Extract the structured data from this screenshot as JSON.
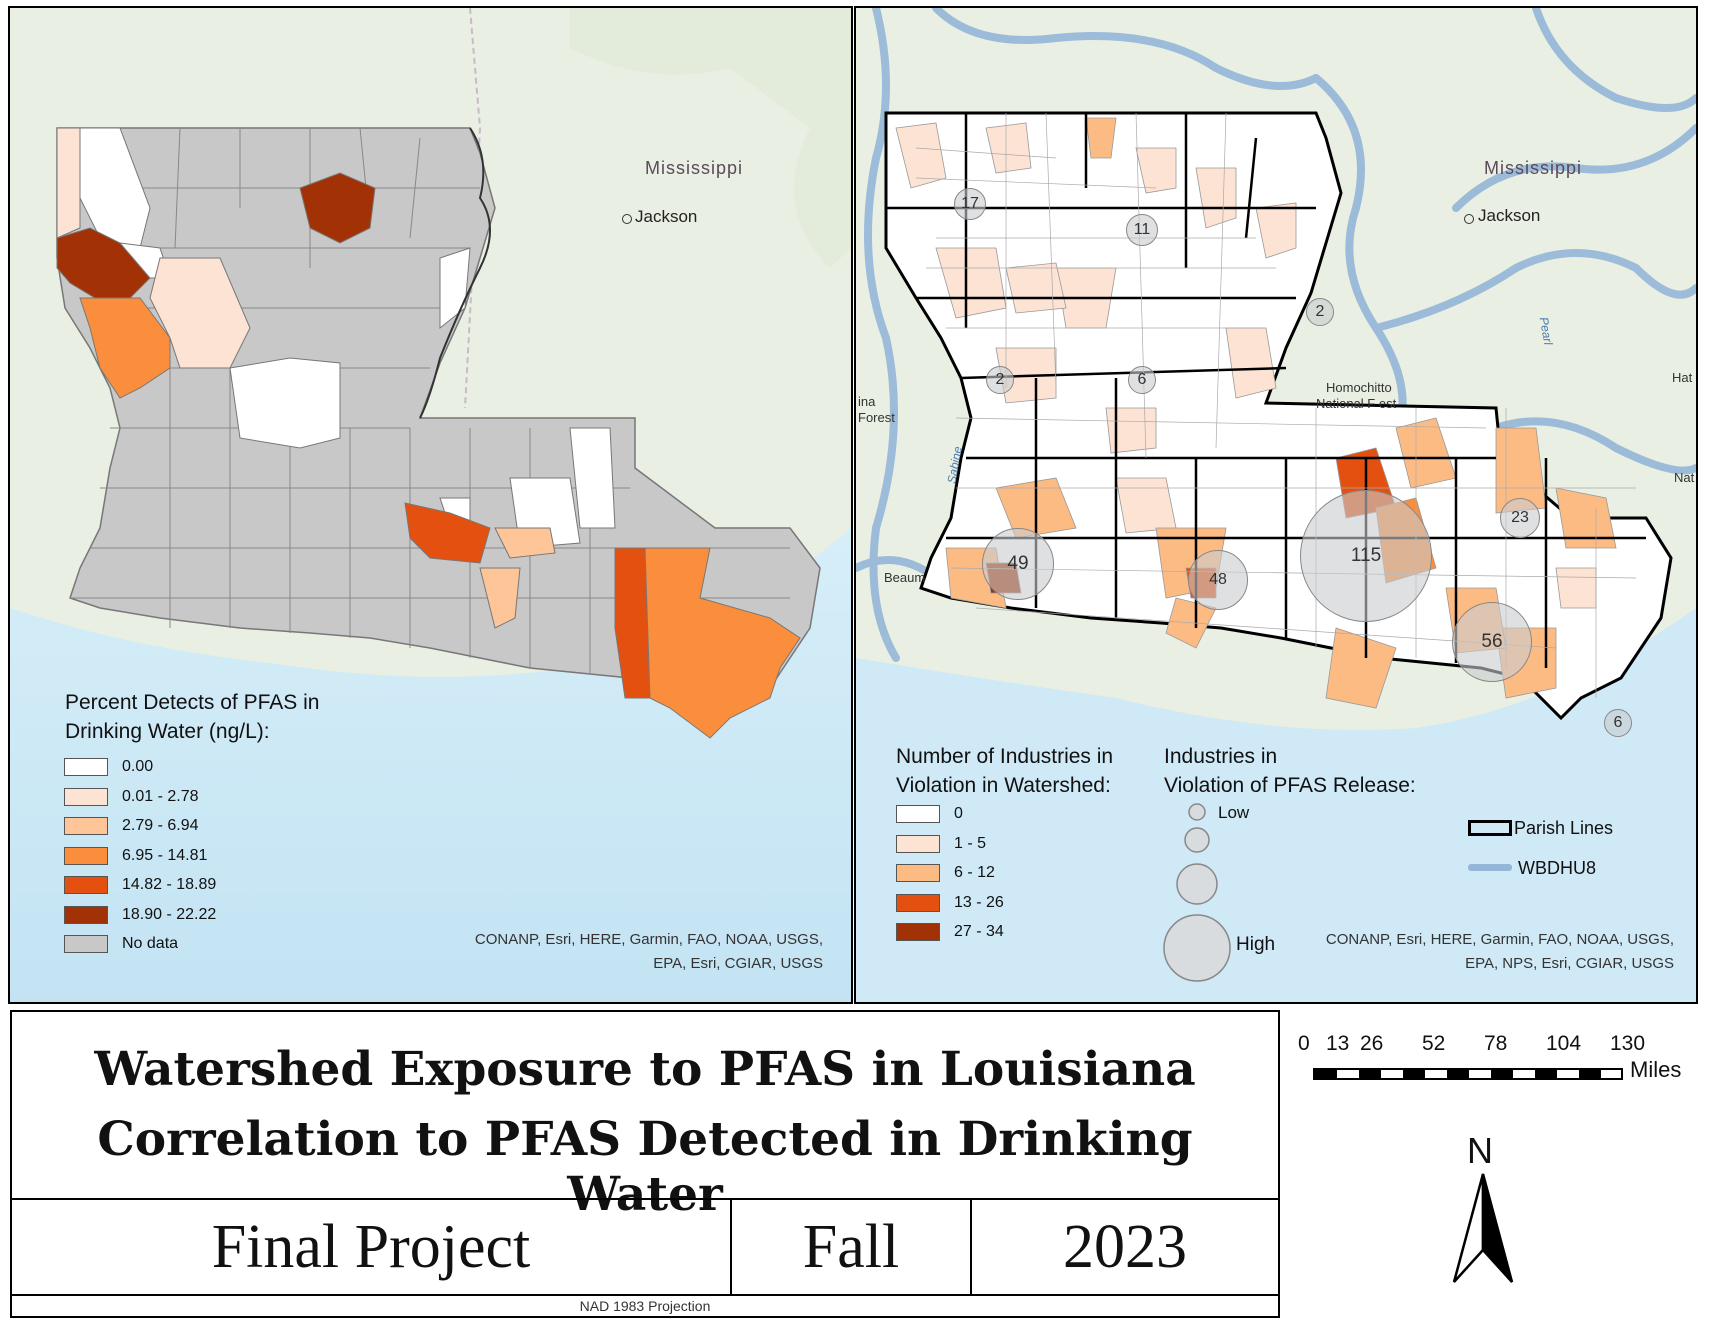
{
  "left_map": {
    "state_label": "Mississippi",
    "city_label": "Jackson",
    "legend": {
      "title_line1": "Percent Detects of PFAS in",
      "title_line2": "Drinking Water (ng/L):",
      "items": [
        {
          "label": "0.00",
          "color": "#ffffff"
        },
        {
          "label": "0.01 - 2.78",
          "color": "#fde3d3"
        },
        {
          "label": "2.79 - 6.94",
          "color": "#fdc598"
        },
        {
          "label": "6.95 - 14.81",
          "color": "#fb8e3c"
        },
        {
          "label": "14.82 - 18.89",
          "color": "#e4500f"
        },
        {
          "label": "18.90 - 22.22",
          "color": "#a33106"
        },
        {
          "label": "No data",
          "color": "#c8c8c8"
        }
      ]
    },
    "credit_line1": "CONANP, Esri, HERE, Garmin, FAO, NOAA, USGS,",
    "credit_line2": "EPA, Esri, CGIAR, USGS"
  },
  "right_map": {
    "state_label": "Mississippi",
    "city_label": "Jackson",
    "label_homochitto_1": "Homochitto",
    "label_homochitto_2": "National F    est",
    "label_forest_1": "ina",
    "label_forest_2": "Forest",
    "label_beaum": "Beaum",
    "label_hat": "Hat",
    "label_nat": "Nat",
    "river_sabine": "Sabine",
    "river_pearl": "Pearl",
    "counts": [
      {
        "value": "17"
      },
      {
        "value": "11"
      },
      {
        "value": "2"
      },
      {
        "value": "2"
      },
      {
        "value": "6"
      },
      {
        "value": "49"
      },
      {
        "value": "48"
      },
      {
        "value": "115"
      },
      {
        "value": "23"
      },
      {
        "value": "56"
      },
      {
        "value": "6"
      }
    ],
    "legend_watershed": {
      "title_line1": "Number of Industries in",
      "title_line2": "Violation in Watershed:",
      "items": [
        {
          "label": "0",
          "color": "#ffffff"
        },
        {
          "label": "1 - 5",
          "color": "#fde3d3"
        },
        {
          "label": "6 - 12",
          "color": "#fdbb84"
        },
        {
          "label": "13 - 26",
          "color": "#e4500f"
        },
        {
          "label": "27 - 34",
          "color": "#a33106"
        }
      ]
    },
    "legend_industries": {
      "title_line1": "Industries in",
      "title_line2": "Violation of PFAS Release:",
      "low_label": "Low",
      "high_label": "High"
    },
    "legend_lines": {
      "parish_label": "Parish Lines",
      "wbd_label": "WBDHU8"
    },
    "credit_line1": "CONANP, Esri, HERE, Garmin, FAO, NOAA, USGS,",
    "credit_line2": "EPA, NPS, Esri, CGIAR, USGS"
  },
  "title": {
    "line1": "Watershed Exposure to PFAS in Louisiana",
    "line2": "Correlation to PFAS Detected in Drinking Water",
    "cell_project": "Final Project",
    "cell_term": "Fall",
    "cell_year": "2023",
    "projection": "NAD 1983 Projection"
  },
  "scale_bar": {
    "ticks": [
      "0",
      "13",
      "26",
      "52",
      "78",
      "104",
      "130"
    ],
    "unit": "Miles"
  },
  "north_arrow": {
    "label": "N"
  },
  "colors": {
    "water": "#cde9f6",
    "land": "#e8efe1",
    "wbd": "#94b6d8",
    "no_data": "#c8c8c8"
  }
}
